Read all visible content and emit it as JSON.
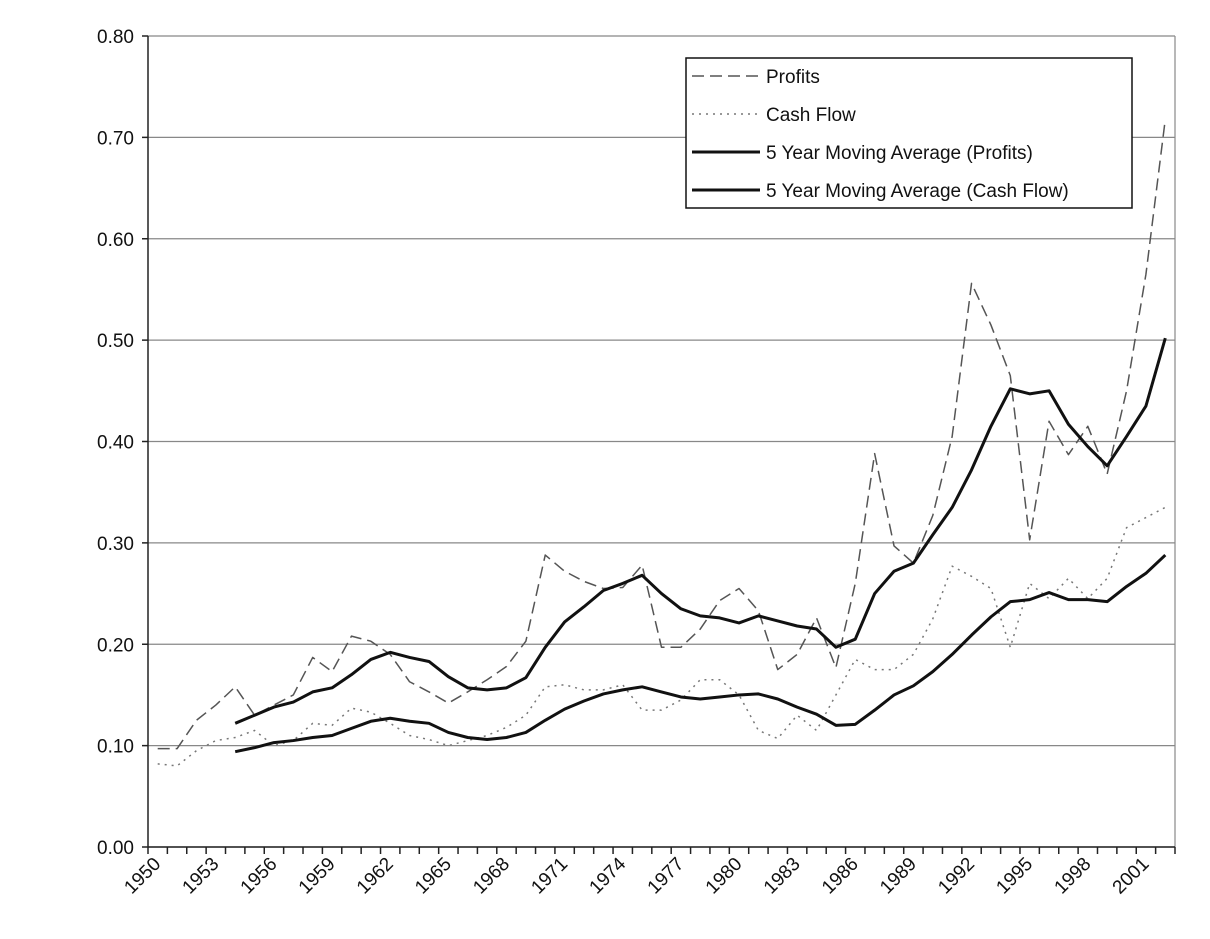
{
  "chart_data": {
    "type": "line",
    "categories": [
      "1950",
      null,
      null,
      "1953",
      null,
      null,
      "1956",
      null,
      null,
      "1959",
      null,
      null,
      "1962",
      null,
      null,
      "1965",
      null,
      null,
      "1968",
      null,
      null,
      "1971",
      null,
      null,
      "1974",
      null,
      null,
      "1977",
      null,
      null,
      "1980",
      null,
      null,
      "1983",
      null,
      null,
      "1986",
      null,
      null,
      "1989",
      null,
      null,
      "1992",
      null,
      null,
      "1995",
      null,
      null,
      "1998",
      null,
      null,
      "2001",
      null
    ],
    "series": [
      {
        "name": "Profits",
        "color": "#555555",
        "dash": "dashed",
        "values": [
          0.097,
          0.097,
          0.125,
          0.14,
          0.158,
          0.13,
          0.14,
          0.15,
          0.187,
          0.173,
          0.208,
          0.203,
          0.19,
          0.163,
          0.153,
          0.142,
          0.153,
          0.165,
          0.178,
          0.203,
          0.288,
          0.272,
          0.262,
          0.255,
          0.256,
          0.278,
          0.197,
          0.197,
          0.215,
          0.243,
          0.255,
          0.233,
          0.175,
          0.19,
          0.226,
          0.177,
          0.26,
          0.388,
          0.297,
          0.28,
          0.327,
          0.405,
          0.556,
          0.515,
          0.465,
          0.303,
          0.42,
          0.387,
          0.415,
          0.368,
          0.45,
          0.565,
          0.718
        ]
      },
      {
        "name": "Cash Flow",
        "color": "#777777",
        "dash": "dotted",
        "values": [
          0.082,
          0.08,
          0.095,
          0.105,
          0.108,
          0.115,
          0.1,
          0.105,
          0.122,
          0.12,
          0.137,
          0.133,
          0.122,
          0.11,
          0.106,
          0.1,
          0.105,
          0.11,
          0.118,
          0.13,
          0.158,
          0.16,
          0.155,
          0.155,
          0.16,
          0.135,
          0.135,
          0.145,
          0.165,
          0.165,
          0.15,
          0.115,
          0.107,
          0.13,
          0.115,
          0.15,
          0.185,
          0.175,
          0.175,
          0.19,
          0.225,
          0.277,
          0.267,
          0.255,
          0.197,
          0.26,
          0.245,
          0.265,
          0.245,
          0.265,
          0.315,
          0.325,
          0.335
        ]
      },
      {
        "name": "5 Year Moving Average (Profits)",
        "color": "#111111",
        "dash": "solid",
        "values": [
          null,
          null,
          null,
          null,
          0.122,
          0.13,
          0.138,
          0.143,
          0.153,
          0.157,
          0.17,
          0.185,
          0.192,
          0.187,
          0.183,
          0.168,
          0.157,
          0.155,
          0.157,
          0.167,
          0.197,
          0.222,
          0.237,
          0.253,
          0.26,
          0.268,
          0.25,
          0.235,
          0.228,
          0.226,
          0.221,
          0.228,
          0.223,
          0.218,
          0.215,
          0.197,
          0.205,
          0.25,
          0.272,
          0.28,
          0.308,
          0.335,
          0.372,
          0.415,
          0.452,
          0.447,
          0.45,
          0.417,
          0.395,
          0.376,
          0.405,
          0.435,
          0.502
        ]
      },
      {
        "name": "5 Year Moving Average (Cash Flow)",
        "color": "#111111",
        "dash": "solid",
        "values": [
          null,
          null,
          null,
          null,
          0.094,
          0.098,
          0.103,
          0.105,
          0.108,
          0.11,
          0.117,
          0.124,
          0.127,
          0.124,
          0.122,
          0.113,
          0.108,
          0.106,
          0.108,
          0.113,
          0.125,
          0.136,
          0.144,
          0.151,
          0.155,
          0.158,
          0.153,
          0.148,
          0.146,
          0.148,
          0.15,
          0.151,
          0.146,
          0.138,
          0.131,
          0.12,
          0.121,
          0.135,
          0.15,
          0.159,
          0.173,
          0.19,
          0.209,
          0.227,
          0.242,
          0.244,
          0.251,
          0.244,
          0.244,
          0.242,
          0.257,
          0.27,
          0.288
        ]
      }
    ],
    "ylim": [
      0,
      0.8
    ],
    "yticks": [
      {
        "value": 0,
        "label": "0.00"
      },
      {
        "value": 0.1,
        "label": "0.10"
      },
      {
        "value": 0.2,
        "label": "0.20"
      },
      {
        "value": 0.3,
        "label": "0.30"
      },
      {
        "value": 0.4,
        "label": "0.40"
      },
      {
        "value": 0.5,
        "label": "0.50"
      },
      {
        "value": 0.6,
        "label": "0.60"
      },
      {
        "value": 0.7,
        "label": "0.70"
      },
      {
        "value": 0.8,
        "label": "0.80"
      }
    ],
    "grid": true,
    "legend": "top-right"
  }
}
